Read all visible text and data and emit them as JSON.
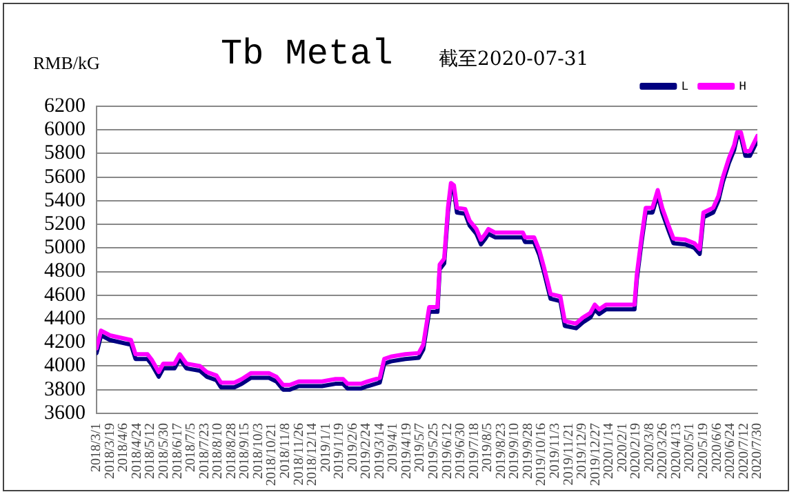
{
  "chart_data": {
    "type": "line",
    "title": "Tb Metal",
    "subtitle": "截至2020-07-31",
    "ylabel": "RMB/kG",
    "x": [
      "2018-03-01",
      "2018-03-07",
      "2018-03-19",
      "2018-04-16",
      "2018-04-22",
      "2018-05-08",
      "2018-05-14",
      "2018-05-23",
      "2018-05-29",
      "2018-06-13",
      "2018-06-20",
      "2018-06-29",
      "2018-07-17",
      "2018-07-26",
      "2018-08-08",
      "2018-08-14",
      "2018-09-01",
      "2018-09-11",
      "2018-09-23",
      "2018-10-17",
      "2018-10-27",
      "2018-11-05",
      "2018-11-14",
      "2018-11-26",
      "2018-12-27",
      "2019-01-14",
      "2019-01-24",
      "2019-01-30",
      "2019-02-17",
      "2019-02-26",
      "2019-03-14",
      "2019-03-20",
      "2019-03-29",
      "2019-04-17",
      "2019-05-05",
      "2019-05-11",
      "2019-05-19",
      "2019-05-30",
      "2019-06-02",
      "2019-06-08",
      "2019-06-13",
      "2019-06-17",
      "2019-06-21",
      "2019-06-25",
      "2019-07-06",
      "2019-07-12",
      "2019-07-21",
      "2019-07-27",
      "2019-08-02",
      "2019-08-06",
      "2019-08-15",
      "2019-09-21",
      "2019-09-24",
      "2019-10-06",
      "2019-10-13",
      "2019-10-19",
      "2019-10-28",
      "2019-11-10",
      "2019-11-16",
      "2019-12-01",
      "2019-12-10",
      "2019-12-20",
      "2019-12-26",
      "2020-01-01",
      "2020-01-10",
      "2020-02-17",
      "2020-02-20",
      "2020-02-26",
      "2020-03-03",
      "2020-03-12",
      "2020-03-19",
      "2020-03-25",
      "2020-04-03",
      "2020-04-09",
      "2020-04-25",
      "2020-05-07",
      "2020-05-14",
      "2020-05-19",
      "2020-06-01",
      "2020-06-08",
      "2020-06-14",
      "2020-06-22",
      "2020-06-29",
      "2020-07-03",
      "2020-07-08",
      "2020-07-14",
      "2020-07-20",
      "2020-07-30"
    ],
    "series": [
      {
        "name": "L",
        "color": "#000080",
        "values": [
          4110,
          4260,
          4220,
          4180,
          4060,
          4060,
          4010,
          3910,
          3980,
          3980,
          4060,
          3980,
          3960,
          3910,
          3880,
          3820,
          3820,
          3850,
          3900,
          3900,
          3870,
          3800,
          3800,
          3830,
          3830,
          3850,
          3850,
          3810,
          3810,
          3830,
          3860,
          4020,
          4040,
          4060,
          4070,
          4140,
          4460,
          4460,
          4820,
          4870,
          5300,
          5510,
          5490,
          5300,
          5290,
          5190,
          5120,
          5030,
          5080,
          5120,
          5090,
          5090,
          5050,
          5050,
          4940,
          4800,
          4570,
          4550,
          4340,
          4320,
          4370,
          4410,
          4480,
          4440,
          4480,
          4480,
          4730,
          5030,
          5300,
          5300,
          5450,
          5300,
          5140,
          5040,
          5030,
          5000,
          4950,
          5260,
          5300,
          5400,
          5560,
          5720,
          5830,
          5940,
          5940,
          5780,
          5780,
          5910
        ]
      },
      {
        "name": "H",
        "color": "#ff00ff",
        "values": [
          4150,
          4300,
          4260,
          4220,
          4100,
          4100,
          4050,
          3950,
          4020,
          4020,
          4100,
          4020,
          4000,
          3950,
          3920,
          3860,
          3860,
          3890,
          3940,
          3940,
          3910,
          3840,
          3840,
          3870,
          3870,
          3890,
          3890,
          3850,
          3850,
          3870,
          3900,
          4060,
          4080,
          4100,
          4110,
          4180,
          4500,
          4500,
          4860,
          4910,
          5340,
          5550,
          5530,
          5340,
          5330,
          5230,
          5160,
          5070,
          5120,
          5160,
          5130,
          5130,
          5090,
          5090,
          4980,
          4840,
          4610,
          4590,
          4380,
          4360,
          4410,
          4450,
          4520,
          4480,
          4520,
          4520,
          4770,
          5070,
          5340,
          5340,
          5490,
          5340,
          5180,
          5080,
          5070,
          5040,
          4990,
          5300,
          5340,
          5440,
          5600,
          5760,
          5870,
          5980,
          5980,
          5820,
          5820,
          5950
        ]
      }
    ],
    "xlim": [
      "2018-03-01",
      "2020-07-30"
    ],
    "xticks": [
      {
        "value": "2018-03-01",
        "label": "2018/3/1"
      },
      {
        "value": "2018-03-19",
        "label": "2018/3/19"
      },
      {
        "value": "2018-04-06",
        "label": "2018/4/6"
      },
      {
        "value": "2018-04-24",
        "label": "2018/4/24"
      },
      {
        "value": "2018-05-12",
        "label": "2018/5/12"
      },
      {
        "value": "2018-05-30",
        "label": "2018/5/30"
      },
      {
        "value": "2018-06-17",
        "label": "2018/6/17"
      },
      {
        "value": "2018-07-05",
        "label": "2018/7/5"
      },
      {
        "value": "2018-07-23",
        "label": "2018/7/23"
      },
      {
        "value": "2018-08-10",
        "label": "2018/8/10"
      },
      {
        "value": "2018-08-28",
        "label": "2018/8/28"
      },
      {
        "value": "2018-09-15",
        "label": "2018/9/15"
      },
      {
        "value": "2018-10-03",
        "label": "2018/10/3"
      },
      {
        "value": "2018-10-21",
        "label": "2018/10/21"
      },
      {
        "value": "2018-11-08",
        "label": "2018/11/8"
      },
      {
        "value": "2018-11-26",
        "label": "2018/11/26"
      },
      {
        "value": "2018-12-14",
        "label": "2018/12/14"
      },
      {
        "value": "2019-01-01",
        "label": "2019/1/1"
      },
      {
        "value": "2019-01-19",
        "label": "2019/1/19"
      },
      {
        "value": "2019-02-06",
        "label": "2019/2/6"
      },
      {
        "value": "2019-02-24",
        "label": "2019/2/24"
      },
      {
        "value": "2019-03-14",
        "label": "2019/3/14"
      },
      {
        "value": "2019-04-01",
        "label": "2019/4/1"
      },
      {
        "value": "2019-04-19",
        "label": "2019/4/19"
      },
      {
        "value": "2019-05-07",
        "label": "2019/5/7"
      },
      {
        "value": "2019-05-25",
        "label": "2019/5/25"
      },
      {
        "value": "2019-06-12",
        "label": "2019/6/12"
      },
      {
        "value": "2019-06-30",
        "label": "2019/6/30"
      },
      {
        "value": "2019-07-18",
        "label": "2019/7/18"
      },
      {
        "value": "2019-08-05",
        "label": "2019/8/5"
      },
      {
        "value": "2019-08-23",
        "label": "2019/8/23"
      },
      {
        "value": "2019-09-10",
        "label": "2019/9/10"
      },
      {
        "value": "2019-09-28",
        "label": "2019/9/28"
      },
      {
        "value": "2019-10-16",
        "label": "2019/10/16"
      },
      {
        "value": "2019-11-03",
        "label": "2019/11/3"
      },
      {
        "value": "2019-11-21",
        "label": "2019/11/21"
      },
      {
        "value": "2019-12-09",
        "label": "2019/12/9"
      },
      {
        "value": "2019-12-27",
        "label": "2019/12/27"
      },
      {
        "value": "2020-01-14",
        "label": "2020/1/14"
      },
      {
        "value": "2020-02-01",
        "label": "2020/2/1"
      },
      {
        "value": "2020-02-19",
        "label": "2020/2/19"
      },
      {
        "value": "2020-03-08",
        "label": "2020/3/8"
      },
      {
        "value": "2020-03-26",
        "label": "2020/3/26"
      },
      {
        "value": "2020-04-13",
        "label": "2020/4/13"
      },
      {
        "value": "2020-05-01",
        "label": "2020/5/1"
      },
      {
        "value": "2020-05-19",
        "label": "2020/5/19"
      },
      {
        "value": "2020-06-06",
        "label": "2020/6/6"
      },
      {
        "value": "2020-06-24",
        "label": "2020/6/24"
      },
      {
        "value": "2020-07-12",
        "label": "2020/7/12"
      },
      {
        "value": "2020-07-30",
        "label": "2020/7/30"
      }
    ],
    "ylim": [
      3600,
      6200
    ],
    "yticks": [
      3600,
      3800,
      4000,
      4200,
      4400,
      4600,
      4800,
      5000,
      5200,
      5400,
      5600,
      5800,
      6000,
      6200
    ],
    "grid": "y",
    "legend": "top right",
    "marker": "none",
    "line_style": "solid"
  }
}
